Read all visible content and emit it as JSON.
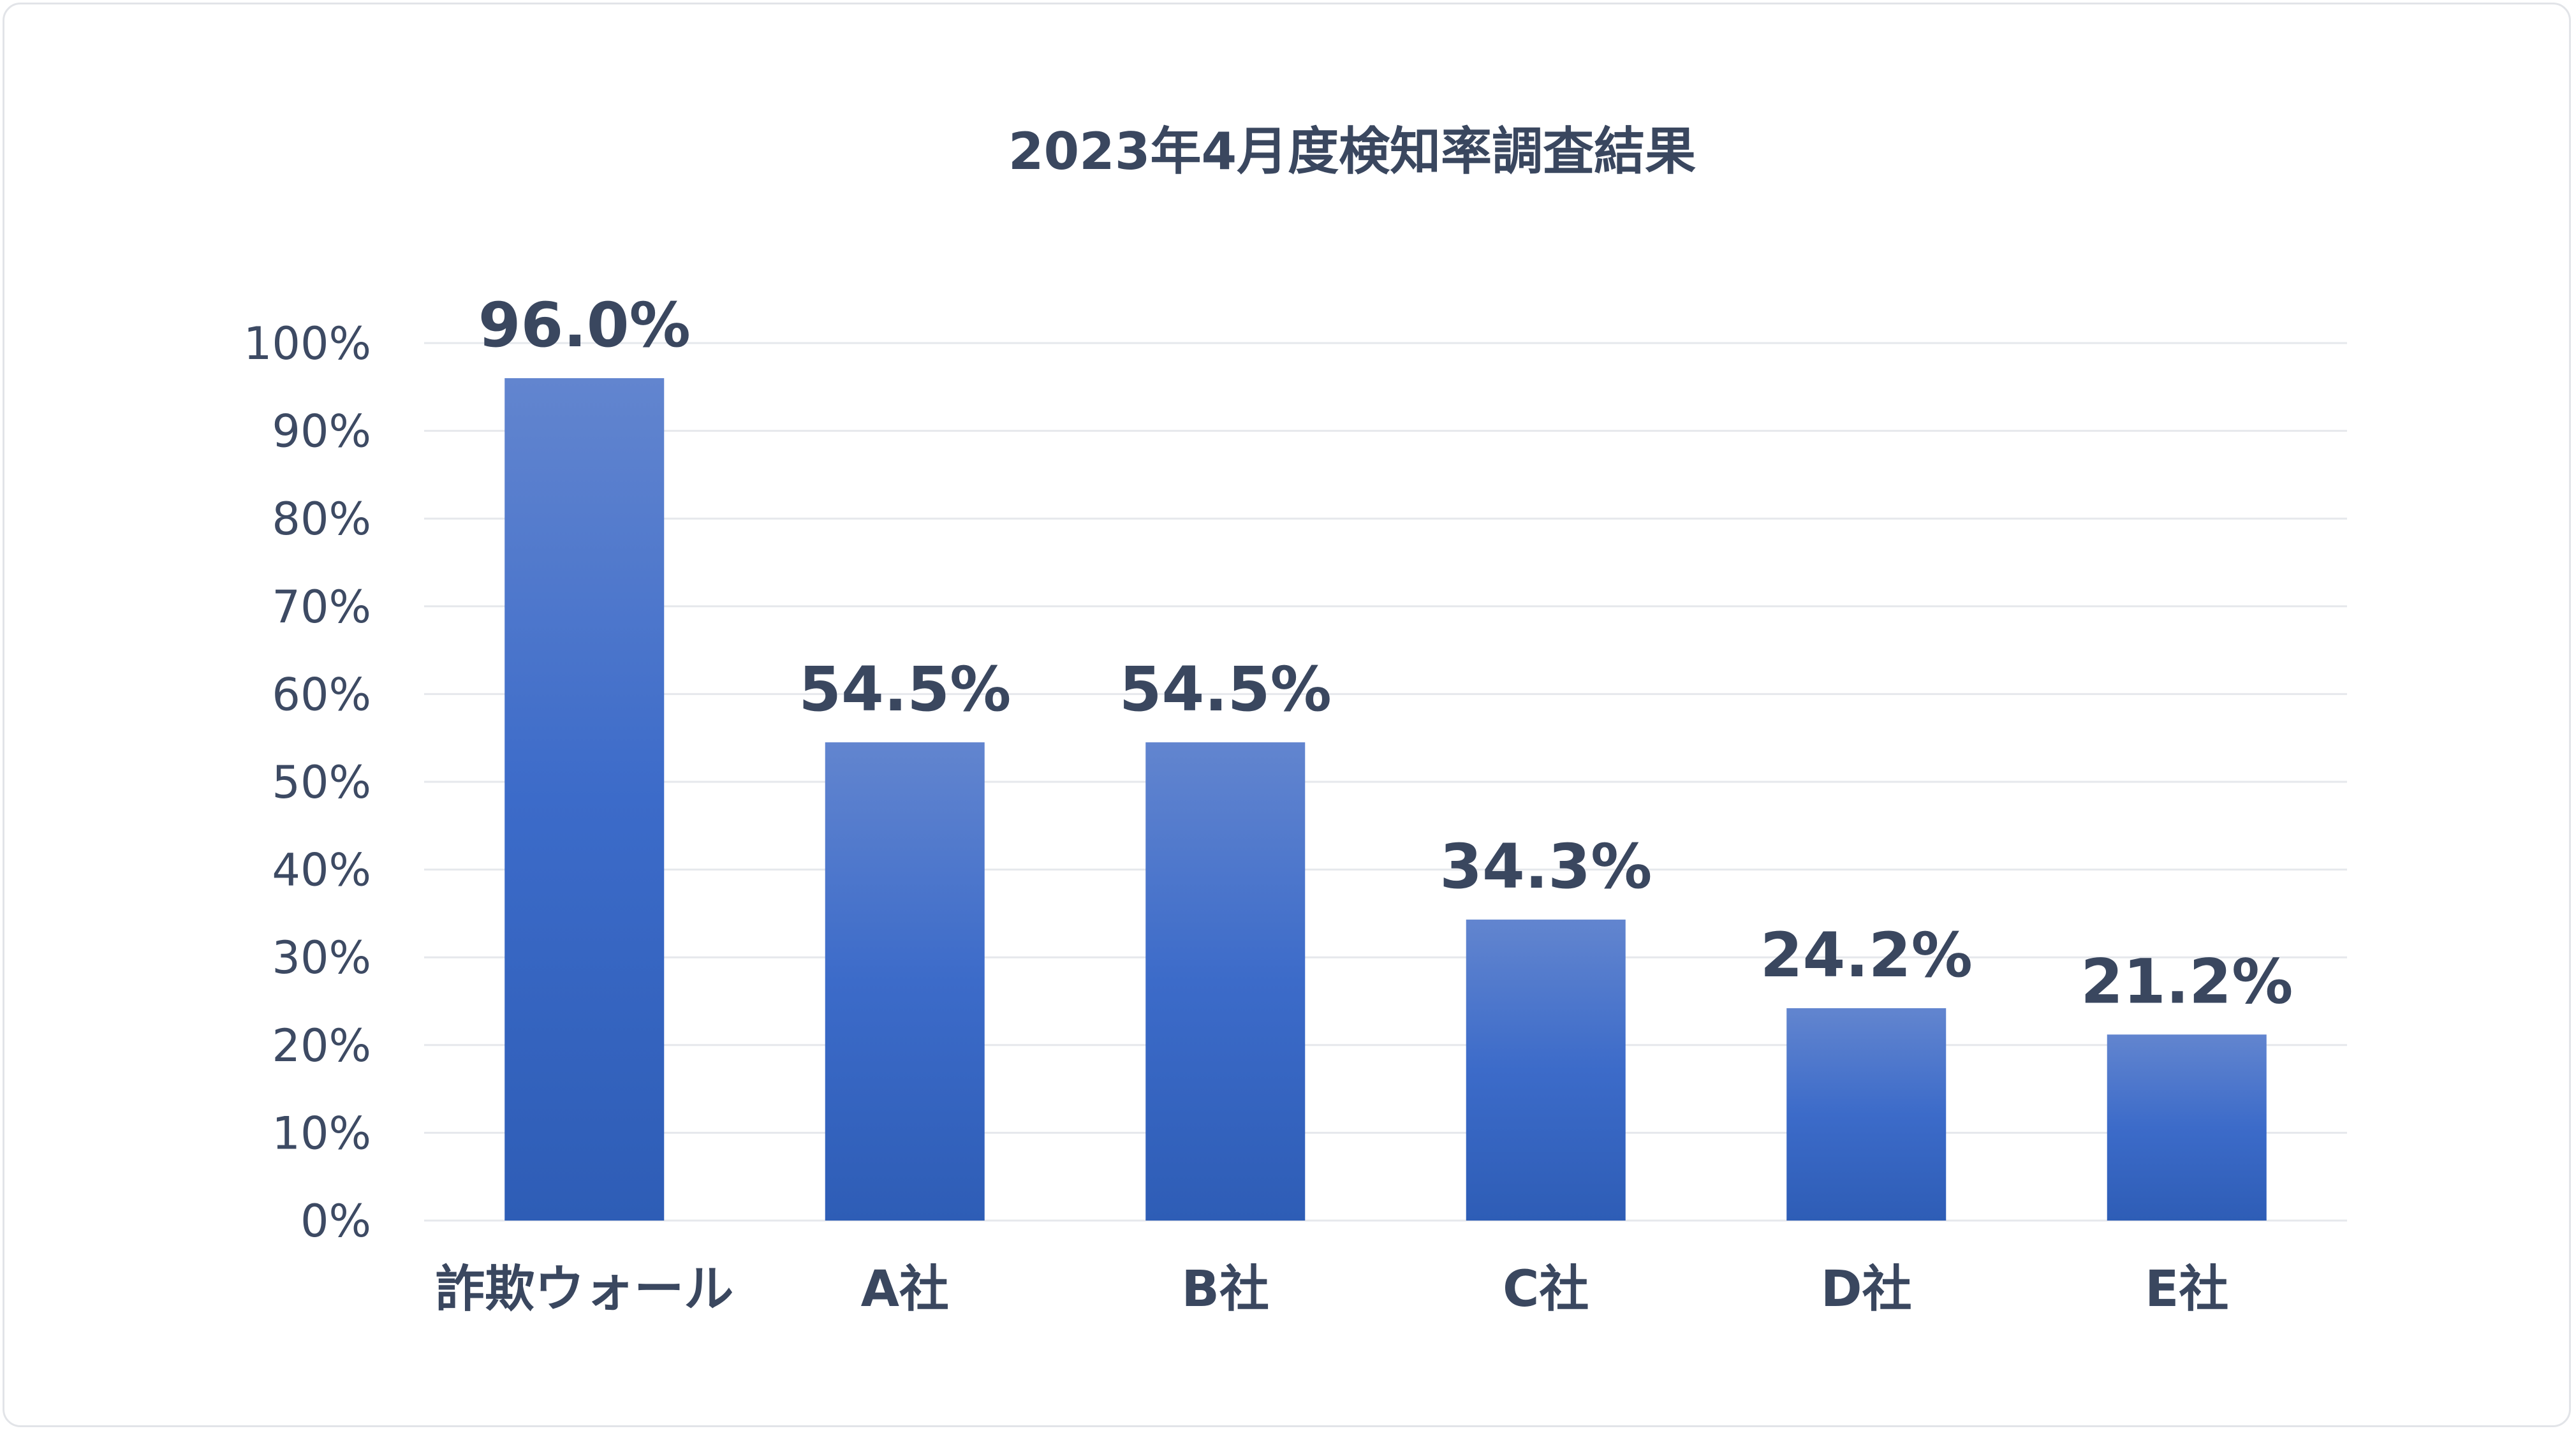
{
  "chart_data": {
    "type": "bar",
    "title": "2023年4月度検知率調査結果",
    "categories": [
      "詐欺ウォール",
      "A社",
      "B社",
      "C社",
      "D社",
      "E社"
    ],
    "values": [
      96.0,
      54.5,
      54.5,
      34.3,
      24.2,
      21.2
    ],
    "data_labels": [
      "96.0%",
      "54.5%",
      "54.5%",
      "34.3%",
      "24.2%",
      "21.2%"
    ],
    "ylim": [
      0,
      100
    ],
    "yticks": [
      "0%",
      "10%",
      "20%",
      "30%",
      "40%",
      "50%",
      "60%",
      "70%",
      "80%",
      "90%",
      "100%"
    ],
    "grid": true,
    "legend": "none",
    "colors": {
      "bar_top": "#6285cf",
      "bar_mid": "#3c6bc9",
      "bar_bottom": "#2e5db6",
      "grid": "#e6e8ec",
      "text": "#3a475f"
    }
  }
}
